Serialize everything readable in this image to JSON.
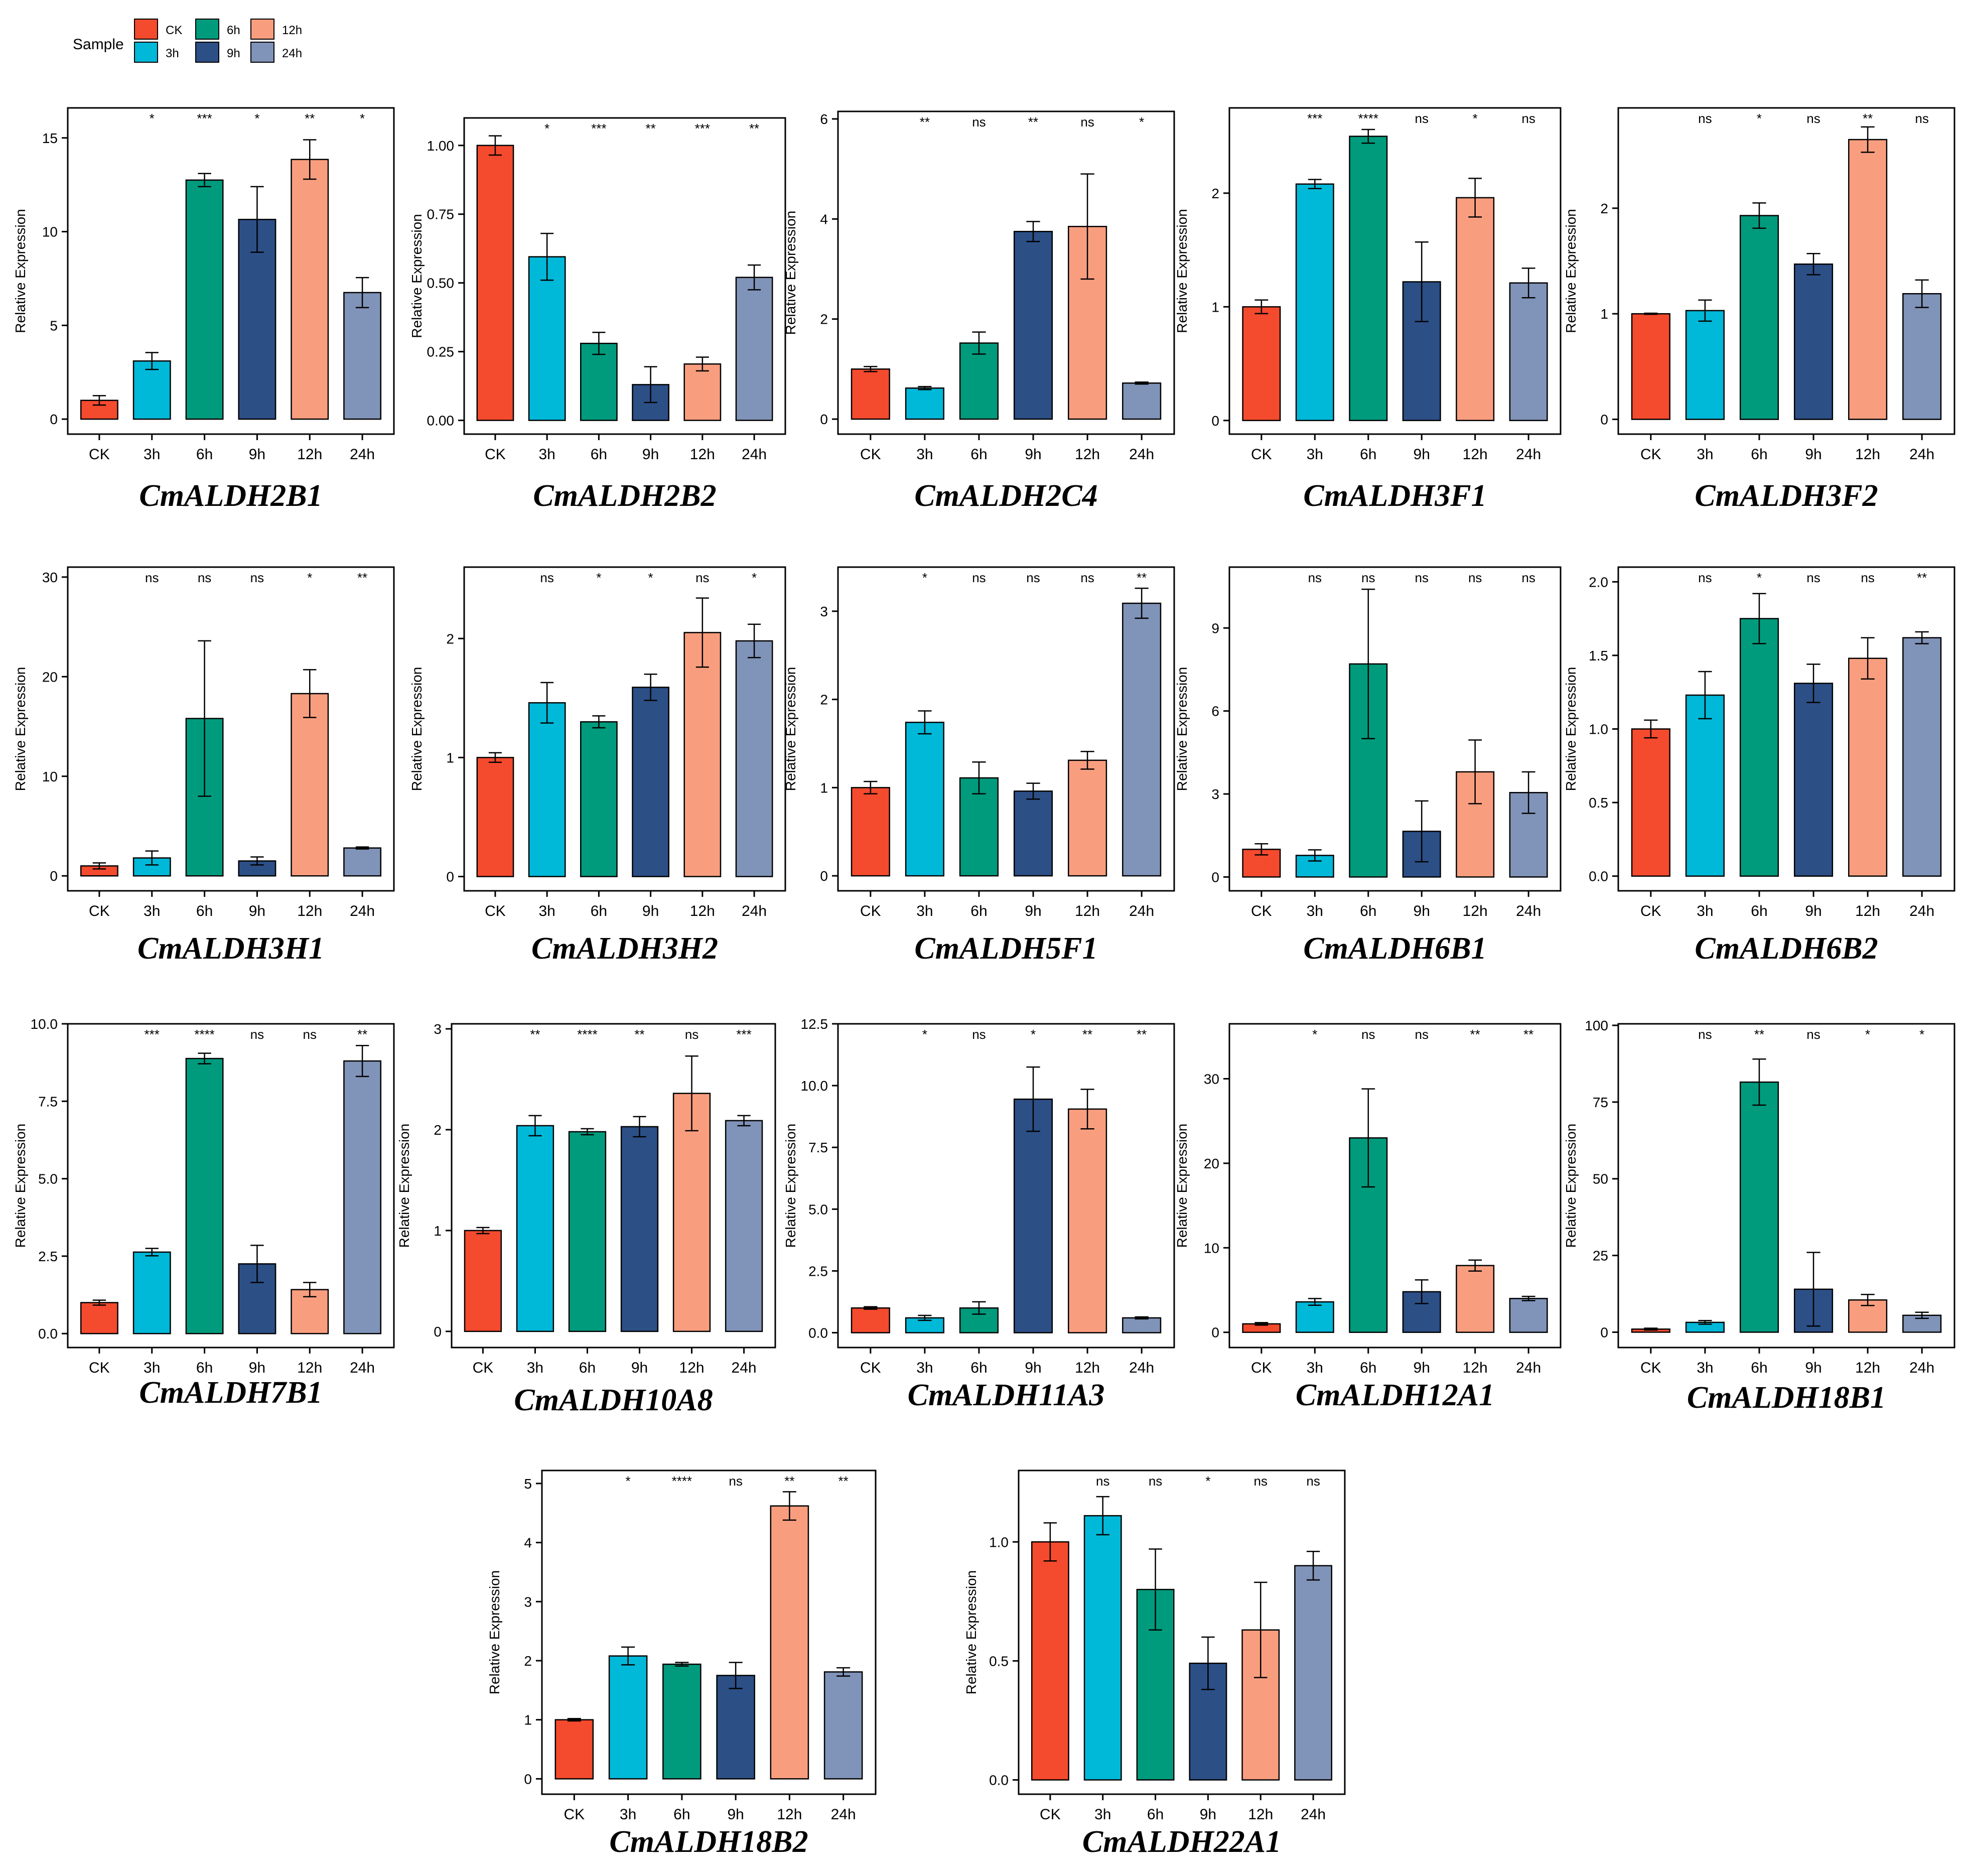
{
  "legend": {
    "title": "Sample",
    "entries": [
      {
        "label": "CK",
        "color": "#F44A2E"
      },
      {
        "label": "3h",
        "color": "#00B8D8"
      },
      {
        "label": "6h",
        "color": "#009B7D"
      },
      {
        "label": "9h",
        "color": "#2C4F86"
      },
      {
        "label": "12h",
        "color": "#F89E7F"
      },
      {
        "label": "24h",
        "color": "#8093B8"
      }
    ]
  },
  "chart_data": [
    {
      "type": "bar",
      "title": "CmALDH2B1",
      "ylabel": "Relative Expression",
      "categories": [
        "CK",
        "3h",
        "6h",
        "9h",
        "12h",
        "24h"
      ],
      "values": [
        1.0,
        3.1,
        12.75,
        10.65,
        13.85,
        6.75
      ],
      "errors": [
        0.25,
        0.45,
        0.35,
        1.75,
        1.05,
        0.8
      ],
      "significance": [
        "",
        "*",
        "***",
        "*",
        "**",
        "*"
      ],
      "ylim": [
        -0.8,
        16.6
      ],
      "yticks": [
        0,
        5,
        10,
        15
      ],
      "ytick_labels": [
        "0",
        "5",
        "10",
        "15"
      ]
    },
    {
      "type": "bar",
      "title": "CmALDH2B2",
      "ylabel": "Relative Expression",
      "categories": [
        "CK",
        "3h",
        "6h",
        "9h",
        "12h",
        "24h"
      ],
      "values": [
        1.0,
        0.595,
        0.28,
        0.13,
        0.205,
        0.52
      ],
      "errors": [
        0.035,
        0.085,
        0.04,
        0.065,
        0.025,
        0.045
      ],
      "significance": [
        "",
        "*",
        "***",
        "**",
        "***",
        "**"
      ],
      "ylim": [
        -0.05,
        1.1
      ],
      "yticks": [
        0,
        0.25,
        0.5,
        0.75,
        1.0
      ],
      "ytick_labels": [
        "0.00",
        "0.25",
        "0.50",
        "0.75",
        "1.00"
      ]
    },
    {
      "type": "bar",
      "title": "CmALDH2C4",
      "ylabel": "Relative Expression",
      "categories": [
        "CK",
        "3h",
        "6h",
        "9h",
        "12h",
        "24h"
      ],
      "values": [
        1.0,
        0.62,
        1.52,
        3.75,
        3.85,
        0.72
      ],
      "errors": [
        0.05,
        0.03,
        0.22,
        0.2,
        1.05,
        0.02
      ],
      "significance": [
        "",
        "**",
        "ns",
        "**",
        "ns",
        "*"
      ],
      "ylim": [
        -0.3,
        6.15
      ],
      "yticks": [
        0,
        2,
        4,
        6
      ],
      "ytick_labels": [
        "0",
        "2",
        "4",
        "6"
      ]
    },
    {
      "type": "bar",
      "title": "CmALDH3F1",
      "ylabel": "Relative Expression",
      "categories": [
        "CK",
        "3h",
        "6h",
        "9h",
        "12h",
        "24h"
      ],
      "values": [
        1.0,
        2.08,
        2.5,
        1.22,
        1.96,
        1.21
      ],
      "errors": [
        0.06,
        0.04,
        0.06,
        0.35,
        0.17,
        0.13
      ],
      "significance": [
        "",
        "***",
        "****",
        "ns",
        "*",
        "ns"
      ],
      "ylim": [
        -0.12,
        2.75
      ],
      "yticks": [
        0,
        1,
        2
      ],
      "ytick_labels": [
        "0",
        "1",
        "2"
      ]
    },
    {
      "type": "bar",
      "title": "CmALDH3F2",
      "ylabel": "Relative Expression",
      "categories": [
        "CK",
        "3h",
        "6h",
        "9h",
        "12h",
        "24h"
      ],
      "values": [
        1.0,
        1.03,
        1.93,
        1.47,
        2.65,
        1.19
      ],
      "errors": [
        0.005,
        0.1,
        0.12,
        0.1,
        0.12,
        0.13
      ],
      "significance": [
        "",
        "ns",
        "*",
        "ns",
        "**",
        "ns"
      ],
      "ylim": [
        -0.14,
        2.95
      ],
      "yticks": [
        0,
        1,
        2
      ],
      "ytick_labels": [
        "0",
        "1",
        "2"
      ]
    },
    {
      "type": "bar",
      "title": "CmALDH3H1",
      "ylabel": "Relative Expression",
      "categories": [
        "CK",
        "3h",
        "6h",
        "9h",
        "12h",
        "24h"
      ],
      "values": [
        1.0,
        1.8,
        15.8,
        1.5,
        18.3,
        2.8
      ],
      "errors": [
        0.3,
        0.7,
        7.8,
        0.4,
        2.4,
        0.1
      ],
      "significance": [
        "",
        "ns",
        "ns",
        "ns",
        "*",
        "**"
      ],
      "ylim": [
        -1.5,
        31.0
      ],
      "yticks": [
        0,
        10,
        20,
        30
      ],
      "ytick_labels": [
        "0",
        "10",
        "20",
        "30"
      ]
    },
    {
      "type": "bar",
      "title": "CmALDH3H2",
      "ylabel": "Relative Expression",
      "categories": [
        "CK",
        "3h",
        "6h",
        "9h",
        "12h",
        "24h"
      ],
      "values": [
        1.0,
        1.46,
        1.3,
        1.59,
        2.05,
        1.98
      ],
      "errors": [
        0.04,
        0.17,
        0.05,
        0.11,
        0.29,
        0.14
      ],
      "significance": [
        "",
        "ns",
        "*",
        "*",
        "ns",
        "*"
      ],
      "ylim": [
        -0.12,
        2.6
      ],
      "yticks": [
        0,
        1,
        2
      ],
      "ytick_labels": [
        "0",
        "1",
        "2"
      ]
    },
    {
      "type": "bar",
      "title": "CmALDH5F1",
      "ylabel": "Relative Expression",
      "categories": [
        "CK",
        "3h",
        "6h",
        "9h",
        "12h",
        "24h"
      ],
      "values": [
        1.0,
        1.74,
        1.11,
        0.96,
        1.31,
        3.09
      ],
      "errors": [
        0.07,
        0.13,
        0.18,
        0.09,
        0.1,
        0.17
      ],
      "significance": [
        "",
        "*",
        "ns",
        "ns",
        "ns",
        "**"
      ],
      "ylim": [
        -0.17,
        3.5
      ],
      "yticks": [
        0,
        1,
        2,
        3
      ],
      "ytick_labels": [
        "0",
        "1",
        "2",
        "3"
      ]
    },
    {
      "type": "bar",
      "title": "CmALDH6B1",
      "ylabel": "Relative Expression",
      "categories": [
        "CK",
        "3h",
        "6h",
        "9h",
        "12h",
        "24h"
      ],
      "values": [
        1.0,
        0.78,
        7.7,
        1.65,
        3.8,
        3.05
      ],
      "errors": [
        0.2,
        0.2,
        2.7,
        1.1,
        1.15,
        0.75
      ],
      "significance": [
        "",
        "ns",
        "ns",
        "ns",
        "ns",
        "ns"
      ],
      "ylim": [
        -0.5,
        11.2
      ],
      "yticks": [
        0,
        3,
        6,
        9
      ],
      "ytick_labels": [
        "0",
        "3",
        "6",
        "9"
      ]
    },
    {
      "type": "bar",
      "title": "CmALDH6B2",
      "ylabel": "Relative Expression",
      "categories": [
        "CK",
        "3h",
        "6h",
        "9h",
        "12h",
        "24h"
      ],
      "values": [
        1.0,
        1.23,
        1.75,
        1.31,
        1.48,
        1.62
      ],
      "errors": [
        0.06,
        0.16,
        0.17,
        0.13,
        0.14,
        0.04
      ],
      "significance": [
        "",
        "ns",
        "*",
        "ns",
        "ns",
        "**"
      ],
      "ylim": [
        -0.1,
        2.1
      ],
      "yticks": [
        0,
        0.5,
        1.0,
        1.5,
        2.0
      ],
      "ytick_labels": [
        "0.0",
        "0.5",
        "1.0",
        "1.5",
        "2.0"
      ]
    },
    {
      "type": "bar",
      "title": "CmALDH7B1",
      "ylabel": "Relative Expression",
      "categories": [
        "CK",
        "3h",
        "6h",
        "9h",
        "12h",
        "24h"
      ],
      "values": [
        1.0,
        2.63,
        8.88,
        2.25,
        1.42,
        8.8
      ],
      "errors": [
        0.08,
        0.12,
        0.17,
        0.6,
        0.23,
        0.5
      ],
      "significance": [
        "",
        "***",
        "****",
        "ns",
        "ns",
        "**"
      ],
      "ylim": [
        -0.45,
        10.0
      ],
      "yticks": [
        0,
        2.5,
        5.0,
        7.5,
        10.0
      ],
      "ytick_labels": [
        "0.0",
        "2.5",
        "5.0",
        "7.5",
        "10.0"
      ]
    },
    {
      "type": "bar",
      "title": "CmALDH10A8",
      "ylabel": "Relative Expression",
      "categories": [
        "CK",
        "3h",
        "6h",
        "9h",
        "12h",
        "24h"
      ],
      "values": [
        1.0,
        2.04,
        1.98,
        2.03,
        2.36,
        2.09
      ],
      "errors": [
        0.03,
        0.1,
        0.03,
        0.1,
        0.37,
        0.05
      ],
      "significance": [
        "",
        "**",
        "****",
        "**",
        "ns",
        "***"
      ],
      "ylim": [
        -0.16,
        3.05
      ],
      "yticks": [
        0,
        1,
        2,
        3
      ],
      "ytick_labels": [
        "0",
        "1",
        "2",
        "3"
      ]
    },
    {
      "type": "bar",
      "title": "CmALDH11A3",
      "ylabel": "Relative Expression",
      "categories": [
        "CK",
        "3h",
        "6h",
        "9h",
        "12h",
        "24h"
      ],
      "values": [
        1.0,
        0.6,
        1.0,
        9.45,
        9.05,
        0.6
      ],
      "errors": [
        0.05,
        0.1,
        0.25,
        1.3,
        0.8,
        0.04
      ],
      "significance": [
        "",
        "*",
        "ns",
        "*",
        "**",
        "**"
      ],
      "ylim": [
        -0.6,
        12.5
      ],
      "yticks": [
        0,
        2.5,
        5.0,
        7.5,
        10.0,
        12.5
      ],
      "ytick_labels": [
        "0.0",
        "2.5",
        "5.0",
        "7.5",
        "10.0",
        "12.5"
      ]
    },
    {
      "type": "bar",
      "title": "CmALDH12A1",
      "ylabel": "Relative Expression",
      "categories": [
        "CK",
        "3h",
        "6h",
        "9h",
        "12h",
        "24h"
      ],
      "values": [
        1.0,
        3.6,
        23.0,
        4.8,
        7.9,
        4.0
      ],
      "errors": [
        0.15,
        0.4,
        5.8,
        1.4,
        0.65,
        0.25
      ],
      "significance": [
        "",
        "*",
        "ns",
        "ns",
        "**",
        "**"
      ],
      "ylim": [
        -1.8,
        36.5
      ],
      "yticks": [
        0,
        10,
        20,
        30
      ],
      "ytick_labels": [
        "0",
        "10",
        "20",
        "30"
      ]
    },
    {
      "type": "bar",
      "title": "CmALDH18B1",
      "ylabel": "Relative Expression",
      "categories": [
        "CK",
        "3h",
        "6h",
        "9h",
        "12h",
        "24h"
      ],
      "values": [
        1.0,
        3.2,
        81.5,
        14.0,
        10.5,
        5.5
      ],
      "errors": [
        0.3,
        0.6,
        7.5,
        12.0,
        1.8,
        1.0
      ],
      "significance": [
        "",
        "ns",
        "**",
        "ns",
        "*",
        "*"
      ],
      "ylim": [
        -5.0,
        100.5
      ],
      "yticks": [
        0,
        25,
        50,
        75,
        100
      ],
      "ytick_labels": [
        "0",
        "25",
        "50",
        "75",
        "100"
      ]
    },
    {
      "type": "bar",
      "title": "CmALDH18B2",
      "ylabel": "Relative Expression",
      "categories": [
        "CK",
        "3h",
        "6h",
        "9h",
        "12h",
        "24h"
      ],
      "values": [
        1.0,
        2.08,
        1.94,
        1.75,
        4.62,
        1.81
      ],
      "errors": [
        0.02,
        0.15,
        0.03,
        0.22,
        0.24,
        0.07
      ],
      "significance": [
        "",
        "*",
        "****",
        "ns",
        "**",
        "**"
      ],
      "ylim": [
        -0.26,
        5.22
      ],
      "yticks": [
        0,
        1,
        2,
        3,
        4,
        5
      ],
      "ytick_labels": [
        "0",
        "1",
        "2",
        "3",
        "4",
        "5"
      ]
    },
    {
      "type": "bar",
      "title": "CmALDH22A1",
      "ylabel": "Relative Expression",
      "categories": [
        "CK",
        "3h",
        "6h",
        "9h",
        "12h",
        "24h"
      ],
      "values": [
        1.0,
        1.11,
        0.8,
        0.49,
        0.63,
        0.9
      ],
      "errors": [
        0.08,
        0.08,
        0.17,
        0.11,
        0.2,
        0.06
      ],
      "significance": [
        "",
        "ns",
        "ns",
        "*",
        "ns",
        "ns"
      ],
      "ylim": [
        -0.06,
        1.3
      ],
      "yticks": [
        0,
        0.5,
        1.0
      ],
      "ytick_labels": [
        "0.0",
        "0.5",
        "1.0"
      ]
    }
  ]
}
